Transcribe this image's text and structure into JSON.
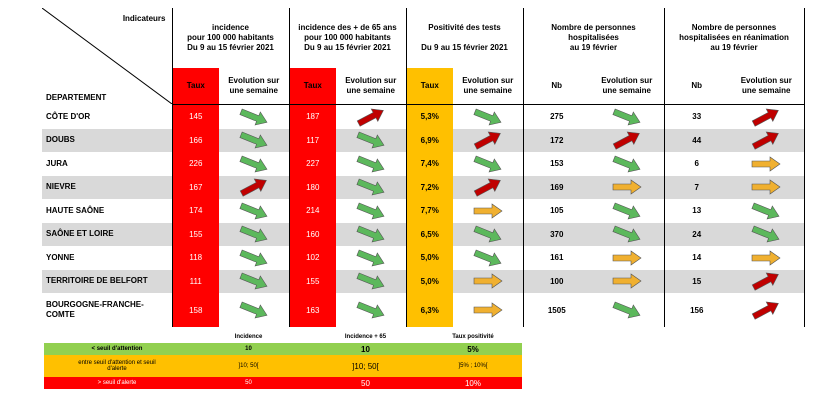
{
  "corner": {
    "indicateurs": "Indicateurs",
    "departement": "DEPARTEMENT"
  },
  "groups": [
    {
      "lines": [
        "incidence",
        "pour 100 000 habitants",
        "Du 9 au 15 février 2021"
      ]
    },
    {
      "lines": [
        "incidence des + de 65 ans",
        "pour 100 000 habitants",
        "Du 9 au 15 février 2021"
      ]
    },
    {
      "lines": [
        "Positivité des tests",
        "",
        "Du 9 au 15 février 2021"
      ]
    },
    {
      "lines": [
        "Nombre de personnes",
        "hospitalisées",
        "au 19 février"
      ]
    },
    {
      "lines": [
        "Nombre de personnes",
        "hospitalisées en réanimation",
        "au 19 février"
      ]
    }
  ],
  "subheaders": {
    "taux": "Taux",
    "evolution": [
      "Evolution sur",
      "une semaine"
    ],
    "nb": "Nb"
  },
  "colors": {
    "red": "#ff0000",
    "orange": "#ffc000",
    "green": "#92d050",
    "gray": "#d9d9d9",
    "arrow_green": "#5cb85c",
    "arrow_red": "#c00000",
    "arrow_orange": "#f0b030"
  },
  "rows": [
    {
      "dept": [
        "CÔTE D'OR"
      ],
      "inc": "145",
      "inc_ev": "down-green",
      "inc65": "187",
      "inc65_ev": "up-red",
      "pos": "5,3%",
      "pos_ev": "down-green",
      "hosp": "275",
      "hosp_ev": "down-green",
      "rea": "33",
      "rea_ev": "up-red"
    },
    {
      "dept": [
        "DOUBS"
      ],
      "inc": "166",
      "inc_ev": "down-green",
      "inc65": "117",
      "inc65_ev": "down-green",
      "pos": "6,9%",
      "pos_ev": "up-red",
      "hosp": "172",
      "hosp_ev": "up-red",
      "rea": "44",
      "rea_ev": "up-red"
    },
    {
      "dept": [
        "JURA"
      ],
      "inc": "226",
      "inc_ev": "down-green",
      "inc65": "227",
      "inc65_ev": "down-green",
      "pos": "7,4%",
      "pos_ev": "down-green",
      "hosp": "153",
      "hosp_ev": "down-green",
      "rea": "6",
      "rea_ev": "right-orange"
    },
    {
      "dept": [
        "NIEVRE"
      ],
      "inc": "167",
      "inc_ev": "up-red",
      "inc65": "180",
      "inc65_ev": "down-green",
      "pos": "7,2%",
      "pos_ev": "up-red",
      "hosp": "169",
      "hosp_ev": "right-orange",
      "rea": "7",
      "rea_ev": "right-orange"
    },
    {
      "dept": [
        "HAUTE SAÔNE"
      ],
      "inc": "174",
      "inc_ev": "down-green",
      "inc65": "214",
      "inc65_ev": "down-green",
      "pos": "7,7%",
      "pos_ev": "right-orange",
      "hosp": "105",
      "hosp_ev": "down-green",
      "rea": "13",
      "rea_ev": "down-green"
    },
    {
      "dept": [
        "SAÔNE ET LOIRE"
      ],
      "inc": "155",
      "inc_ev": "down-green",
      "inc65": "160",
      "inc65_ev": "down-green",
      "pos": "6,5%",
      "pos_ev": "down-green",
      "hosp": "370",
      "hosp_ev": "down-green",
      "rea": "24",
      "rea_ev": "down-green"
    },
    {
      "dept": [
        "YONNE"
      ],
      "inc": "118",
      "inc_ev": "down-green",
      "inc65": "102",
      "inc65_ev": "down-green",
      "pos": "5,0%",
      "pos_ev": "down-green",
      "hosp": "161",
      "hosp_ev": "right-orange",
      "rea": "14",
      "rea_ev": "right-orange"
    },
    {
      "dept": [
        "TERRITOIRE DE BELFORT"
      ],
      "inc": "111",
      "inc_ev": "down-green",
      "inc65": "155",
      "inc65_ev": "down-green",
      "pos": "5,0%",
      "pos_ev": "right-orange",
      "hosp": "100",
      "hosp_ev": "right-orange",
      "rea": "15",
      "rea_ev": "up-red"
    },
    {
      "dept": [
        "BOURGOGNE-FRANCHE-",
        "COMTE"
      ],
      "inc": "158",
      "inc_ev": "down-green",
      "inc65": "163",
      "inc65_ev": "down-green",
      "pos": "6,3%",
      "pos_ev": "right-orange",
      "hosp": "1505",
      "hosp_ev": "down-green",
      "rea": "156",
      "rea_ev": "up-red"
    }
  ],
  "legend": {
    "headers": [
      "Incidence",
      "Incidence + 65",
      "Taux positivité"
    ],
    "rows": [
      {
        "label": [
          "< seuil d'attention"
        ],
        "v": [
          "10",
          "10",
          "5%"
        ]
      },
      {
        "label": [
          "entre seuil d'attention et seuil",
          "d'alerte"
        ],
        "v": [
          "]10; 50[",
          "]10; 50[",
          "]5% ; 10%["
        ]
      },
      {
        "label": [
          "> seuil d'alerte"
        ],
        "v": [
          "50",
          "50",
          "10%"
        ]
      }
    ]
  }
}
